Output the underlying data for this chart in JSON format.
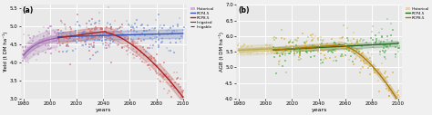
{
  "panel_a": {
    "title": "(a)",
    "xlabel": "years",
    "ylabel": "Yield (t DM ha⁻¹)",
    "ylim": [
      3.0,
      5.6
    ],
    "xlim": [
      1978,
      2103
    ],
    "yticks": [
      3.0,
      3.5,
      4.0,
      4.5,
      5.0,
      5.5
    ],
    "xticks": [
      1980,
      2000,
      2020,
      2040,
      2060,
      2080,
      2100
    ],
    "colors": {
      "historical_scatter": "#cc99cc",
      "historical_line": "#9966aa",
      "rcp45_scatter": "#6688dd",
      "rcp45_line": "#3355bb",
      "rcp85_scatter": "#dd6666",
      "rcp85_line": "#aa2222"
    }
  },
  "panel_b": {
    "title": "(b)",
    "xlabel": "years",
    "ylabel": "AGB (t DM ha⁻¹)",
    "ylim": [
      4.0,
      7.0
    ],
    "xlim": [
      1978,
      2103
    ],
    "yticks": [
      4.0,
      4.5,
      5.0,
      5.5,
      6.0,
      6.5,
      7.0
    ],
    "xticks": [
      1980,
      2000,
      2020,
      2040,
      2060,
      2080,
      2100
    ],
    "colors": {
      "historical_scatter": "#ddcc88",
      "historical_line": "#bbaa55",
      "rcp45_scatter": "#44aa44",
      "rcp45_line": "#226622",
      "rcp85_scatter": "#ddaa22",
      "rcp85_line": "#aa7700"
    }
  },
  "background_color": "#e8e8e8",
  "grid_color": "#ffffff",
  "fig_bg": "#f0f0f0"
}
